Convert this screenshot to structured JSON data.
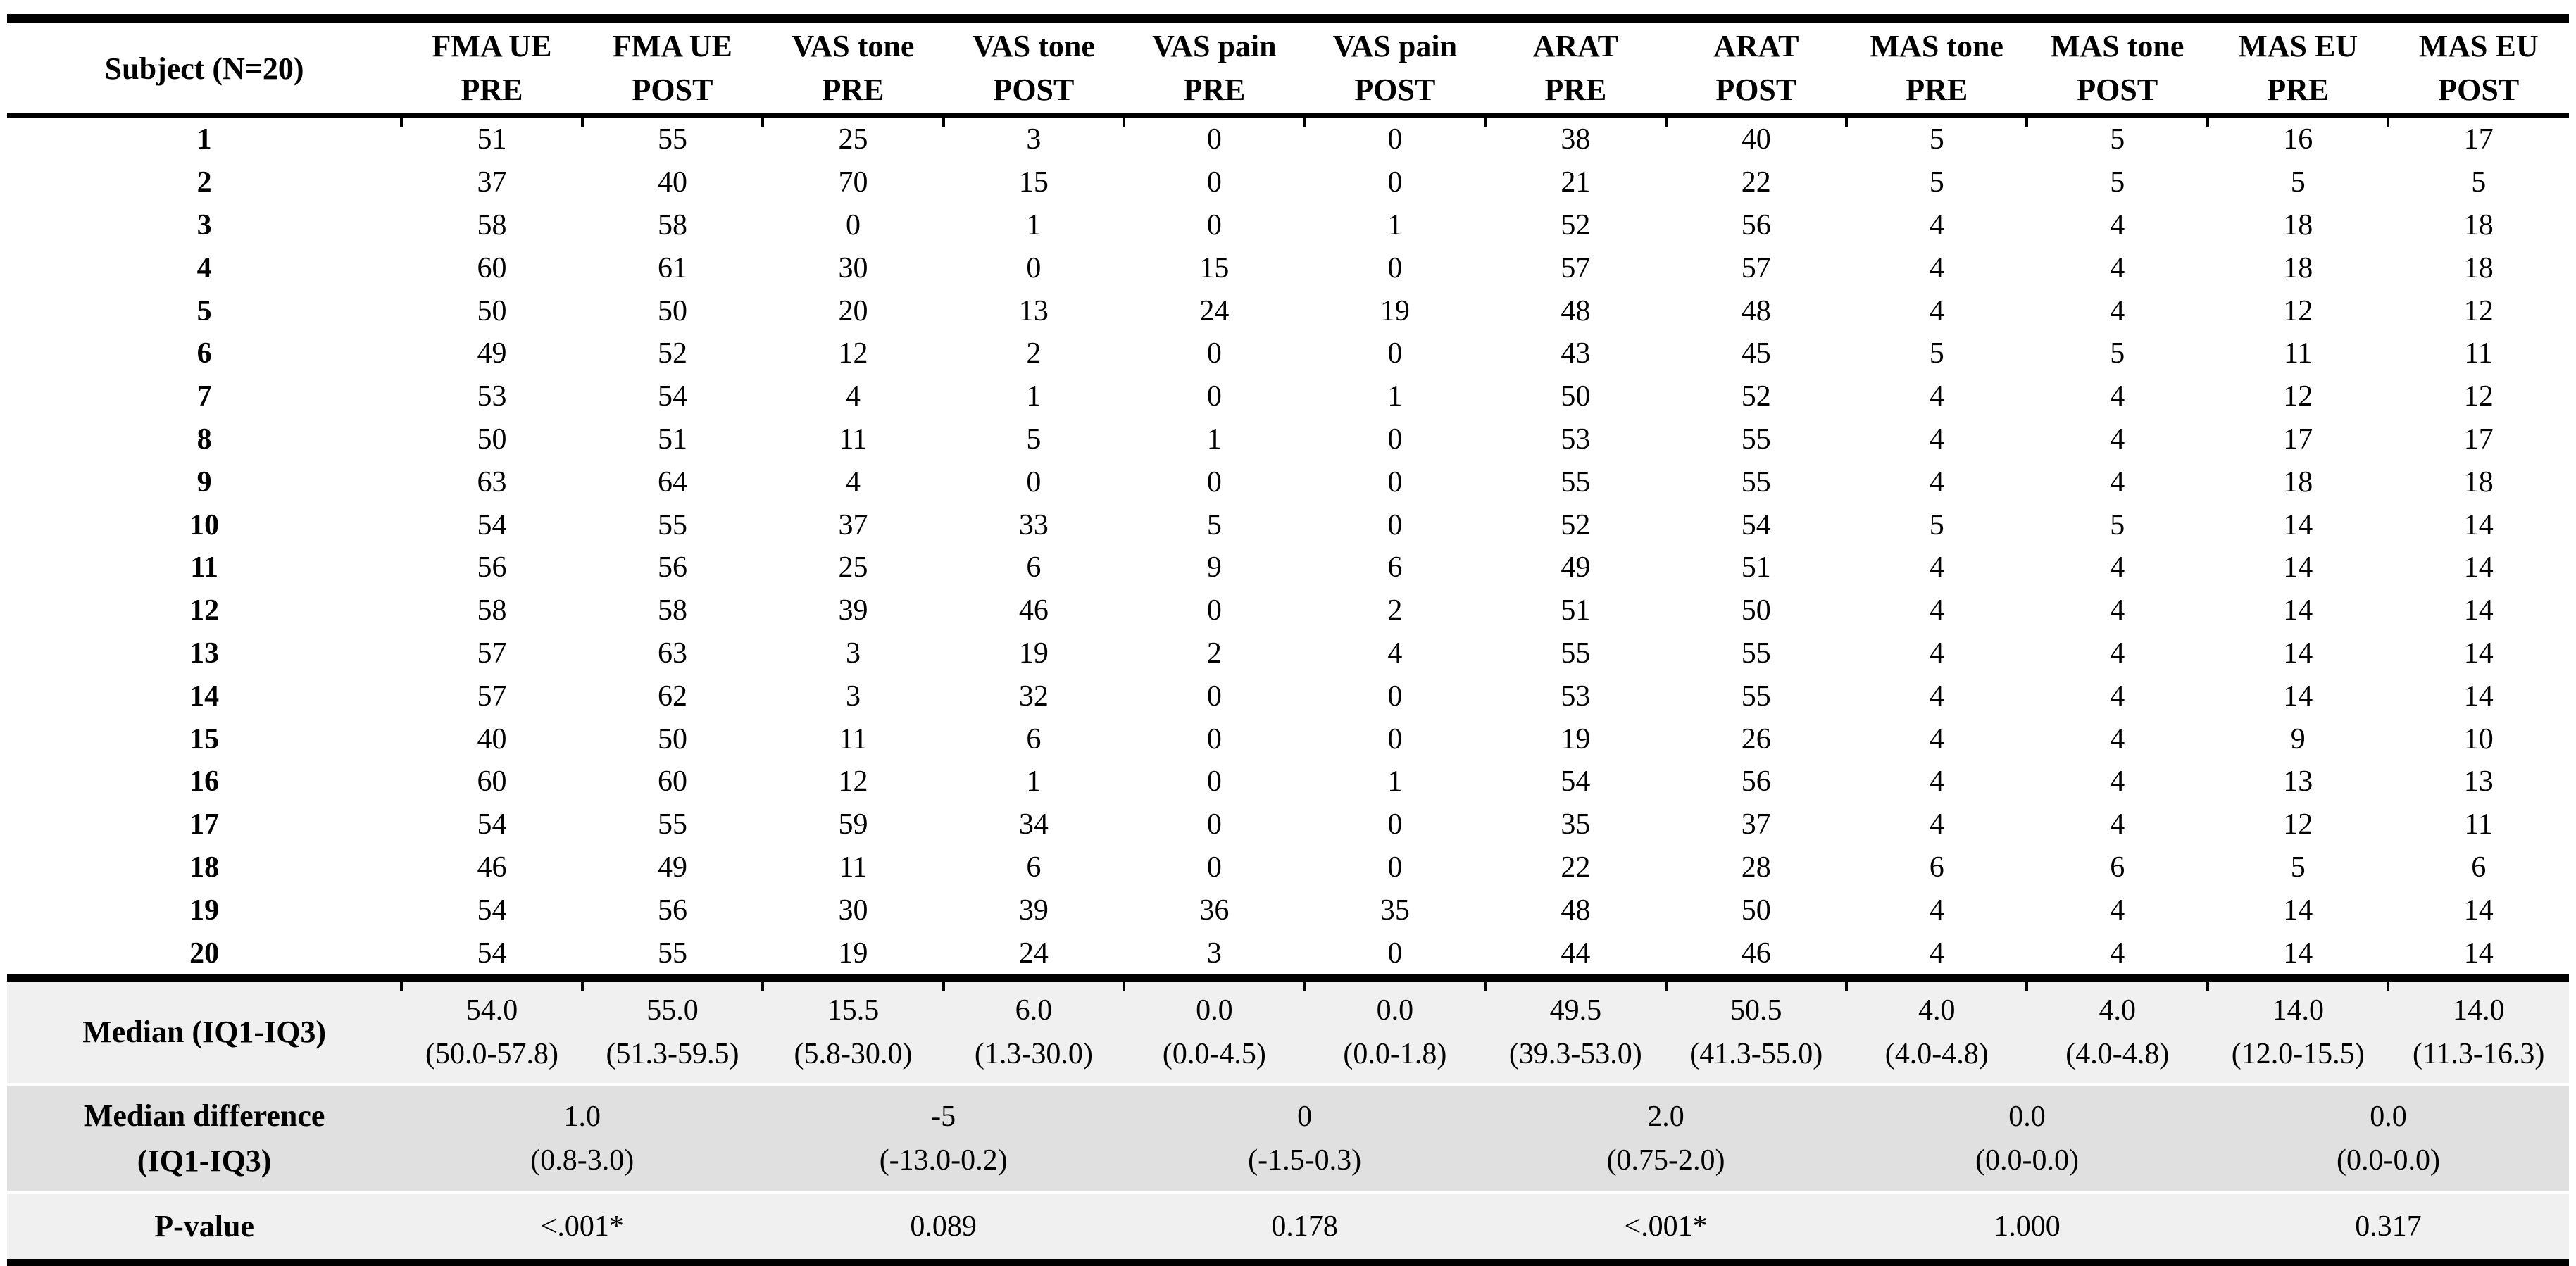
{
  "table": {
    "subject_header": "Subject (N=20)",
    "columns": [
      {
        "line1": "FMA UE",
        "line2": "PRE"
      },
      {
        "line1": "FMA UE",
        "line2": "POST"
      },
      {
        "line1": "VAS tone",
        "line2": "PRE"
      },
      {
        "line1": "VAS tone",
        "line2": "POST"
      },
      {
        "line1": "VAS pain",
        "line2": "PRE"
      },
      {
        "line1": "VAS pain",
        "line2": "POST"
      },
      {
        "line1": "ARAT",
        "line2": "PRE"
      },
      {
        "line1": "ARAT",
        "line2": "POST"
      },
      {
        "line1": "MAS tone",
        "line2": "PRE"
      },
      {
        "line1": "MAS tone",
        "line2": "POST"
      },
      {
        "line1": "MAS EU",
        "line2": "PRE"
      },
      {
        "line1": "MAS EU",
        "line2": "POST"
      }
    ],
    "rows": [
      {
        "subject": "1",
        "values": [
          "51",
          "55",
          "25",
          "3",
          "0",
          "0",
          "38",
          "40",
          "5",
          "5",
          "16",
          "17"
        ]
      },
      {
        "subject": "2",
        "values": [
          "37",
          "40",
          "70",
          "15",
          "0",
          "0",
          "21",
          "22",
          "5",
          "5",
          "5",
          "5"
        ]
      },
      {
        "subject": "3",
        "values": [
          "58",
          "58",
          "0",
          "1",
          "0",
          "1",
          "52",
          "56",
          "4",
          "4",
          "18",
          "18"
        ]
      },
      {
        "subject": "4",
        "values": [
          "60",
          "61",
          "30",
          "0",
          "15",
          "0",
          "57",
          "57",
          "4",
          "4",
          "18",
          "18"
        ]
      },
      {
        "subject": "5",
        "values": [
          "50",
          "50",
          "20",
          "13",
          "24",
          "19",
          "48",
          "48",
          "4",
          "4",
          "12",
          "12"
        ]
      },
      {
        "subject": "6",
        "values": [
          "49",
          "52",
          "12",
          "2",
          "0",
          "0",
          "43",
          "45",
          "5",
          "5",
          "11",
          "11"
        ]
      },
      {
        "subject": "7",
        "values": [
          "53",
          "54",
          "4",
          "1",
          "0",
          "1",
          "50",
          "52",
          "4",
          "4",
          "12",
          "12"
        ]
      },
      {
        "subject": "8",
        "values": [
          "50",
          "51",
          "11",
          "5",
          "1",
          "0",
          "53",
          "55",
          "4",
          "4",
          "17",
          "17"
        ]
      },
      {
        "subject": "9",
        "values": [
          "63",
          "64",
          "4",
          "0",
          "0",
          "0",
          "55",
          "55",
          "4",
          "4",
          "18",
          "18"
        ]
      },
      {
        "subject": "10",
        "values": [
          "54",
          "55",
          "37",
          "33",
          "5",
          "0",
          "52",
          "54",
          "5",
          "5",
          "14",
          "14"
        ]
      },
      {
        "subject": "11",
        "values": [
          "56",
          "56",
          "25",
          "6",
          "9",
          "6",
          "49",
          "51",
          "4",
          "4",
          "14",
          "14"
        ]
      },
      {
        "subject": "12",
        "values": [
          "58",
          "58",
          "39",
          "46",
          "0",
          "2",
          "51",
          "50",
          "4",
          "4",
          "14",
          "14"
        ]
      },
      {
        "subject": "13",
        "values": [
          "57",
          "63",
          "3",
          "19",
          "2",
          "4",
          "55",
          "55",
          "4",
          "4",
          "14",
          "14"
        ]
      },
      {
        "subject": "14",
        "values": [
          "57",
          "62",
          "3",
          "32",
          "0",
          "0",
          "53",
          "55",
          "4",
          "4",
          "14",
          "14"
        ]
      },
      {
        "subject": "15",
        "values": [
          "40",
          "50",
          "11",
          "6",
          "0",
          "0",
          "19",
          "26",
          "4",
          "4",
          "9",
          "10"
        ]
      },
      {
        "subject": "16",
        "values": [
          "60",
          "60",
          "12",
          "1",
          "0",
          "1",
          "54",
          "56",
          "4",
          "4",
          "13",
          "13"
        ]
      },
      {
        "subject": "17",
        "values": [
          "54",
          "55",
          "59",
          "34",
          "0",
          "0",
          "35",
          "37",
          "4",
          "4",
          "12",
          "11"
        ]
      },
      {
        "subject": "18",
        "values": [
          "46",
          "49",
          "11",
          "6",
          "0",
          "0",
          "22",
          "28",
          "6",
          "6",
          "5",
          "6"
        ]
      },
      {
        "subject": "19",
        "values": [
          "54",
          "56",
          "30",
          "39",
          "36",
          "35",
          "48",
          "50",
          "4",
          "4",
          "14",
          "14"
        ]
      },
      {
        "subject": "20",
        "values": [
          "54",
          "55",
          "19",
          "24",
          "3",
          "0",
          "44",
          "46",
          "4",
          "4",
          "14",
          "14"
        ]
      }
    ],
    "median_row": {
      "label": "Median (IQ1-IQ3)",
      "values": [
        {
          "median": "54.0",
          "iqr": "(50.0-57.8)"
        },
        {
          "median": "55.0",
          "iqr": "(51.3-59.5)"
        },
        {
          "median": "15.5",
          "iqr": "(5.8-30.0)"
        },
        {
          "median": "6.0",
          "iqr": "(1.3-30.0)"
        },
        {
          "median": "0.0",
          "iqr": "(0.0-4.5)"
        },
        {
          "median": "0.0",
          "iqr": "(0.0-1.8)"
        },
        {
          "median": "49.5",
          "iqr": "(39.3-53.0)"
        },
        {
          "median": "50.5",
          "iqr": "(41.3-55.0)"
        },
        {
          "median": "4.0",
          "iqr": "(4.0-4.8)"
        },
        {
          "median": "4.0",
          "iqr": "(4.0-4.8)"
        },
        {
          "median": "14.0",
          "iqr": "(12.0-15.5)"
        },
        {
          "median": "14.0",
          "iqr": "(11.3-16.3)"
        }
      ]
    },
    "median_diff_row": {
      "label_line1": "Median difference",
      "label_line2": "(IQ1-IQ3)",
      "values": [
        {
          "value": "1.0",
          "iqr": "(0.8-3.0)"
        },
        {
          "value": "-5",
          "iqr": "(-13.0-0.2)"
        },
        {
          "value": "0",
          "iqr": "(-1.5-0.3)"
        },
        {
          "value": "2.0",
          "iqr": "(0.75-2.0)"
        },
        {
          "value": "0.0",
          "iqr": "(0.0-0.0)"
        },
        {
          "value": "0.0",
          "iqr": "(0.0-0.0)"
        }
      ]
    },
    "pvalue_row": {
      "label": "P-value",
      "values": [
        "<.001*",
        "0.089",
        "0.178",
        "<.001*",
        "1.000",
        "0.317"
      ]
    },
    "colors": {
      "median_bg": "#f0f0f0",
      "diff_bg": "#e0e0e0",
      "pvalue_bg": "#f0f0f0"
    }
  }
}
